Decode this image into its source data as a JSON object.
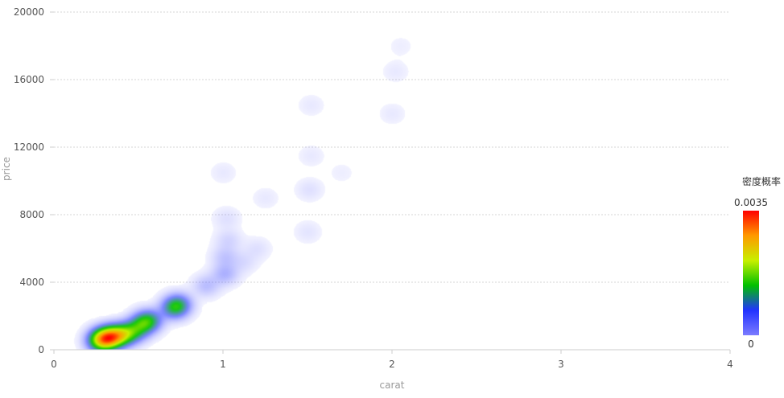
{
  "chart_data": {
    "type": "heatmap",
    "title": "",
    "xlabel": "carat",
    "ylabel": "price",
    "xlim": [
      0,
      4
    ],
    "ylim": [
      0,
      20000
    ],
    "x_ticks": [
      "0",
      "1",
      "2",
      "3",
      "4"
    ],
    "y_ticks": [
      "0",
      "4000",
      "8000",
      "12000",
      "16000",
      "20000"
    ],
    "grid": true,
    "legend": {
      "title": "密度概率",
      "placement": "right",
      "max_label": "0.0035",
      "min_label": "0",
      "colors": [
        "#7b7bff",
        "#2233ff",
        "#00c000",
        "#c8f000",
        "#ff9900",
        "#ff0000"
      ]
    },
    "density_points": [
      {
        "x": 0.31,
        "y": 700,
        "density": 1.0
      },
      {
        "x": 0.36,
        "y": 820,
        "density": 0.85
      },
      {
        "x": 0.27,
        "y": 560,
        "density": 0.75
      },
      {
        "x": 0.42,
        "y": 950,
        "density": 0.6
      },
      {
        "x": 0.48,
        "y": 1150,
        "density": 0.4
      },
      {
        "x": 0.53,
        "y": 1600,
        "density": 0.55
      },
      {
        "x": 0.57,
        "y": 1800,
        "density": 0.35
      },
      {
        "x": 0.71,
        "y": 2500,
        "density": 0.55
      },
      {
        "x": 0.74,
        "y": 2750,
        "density": 0.3
      },
      {
        "x": 0.9,
        "y": 3800,
        "density": 0.15
      },
      {
        "x": 1.01,
        "y": 4500,
        "density": 0.18
      },
      {
        "x": 1.01,
        "y": 5500,
        "density": 0.12
      },
      {
        "x": 1.03,
        "y": 6500,
        "density": 0.08
      },
      {
        "x": 1.02,
        "y": 7800,
        "density": 0.05
      },
      {
        "x": 1.0,
        "y": 10500,
        "density": 0.03
      },
      {
        "x": 1.12,
        "y": 5200,
        "density": 0.06
      },
      {
        "x": 1.2,
        "y": 6000,
        "density": 0.05
      },
      {
        "x": 1.25,
        "y": 9000,
        "density": 0.03
      },
      {
        "x": 1.5,
        "y": 7000,
        "density": 0.04
      },
      {
        "x": 1.51,
        "y": 9500,
        "density": 0.05
      },
      {
        "x": 1.52,
        "y": 11500,
        "density": 0.03
      },
      {
        "x": 1.52,
        "y": 14500,
        "density": 0.03
      },
      {
        "x": 1.7,
        "y": 10500,
        "density": 0.02
      },
      {
        "x": 2.0,
        "y": 14000,
        "density": 0.03
      },
      {
        "x": 2.02,
        "y": 16500,
        "density": 0.03
      },
      {
        "x": 2.05,
        "y": 18000,
        "density": 0.02
      }
    ]
  }
}
